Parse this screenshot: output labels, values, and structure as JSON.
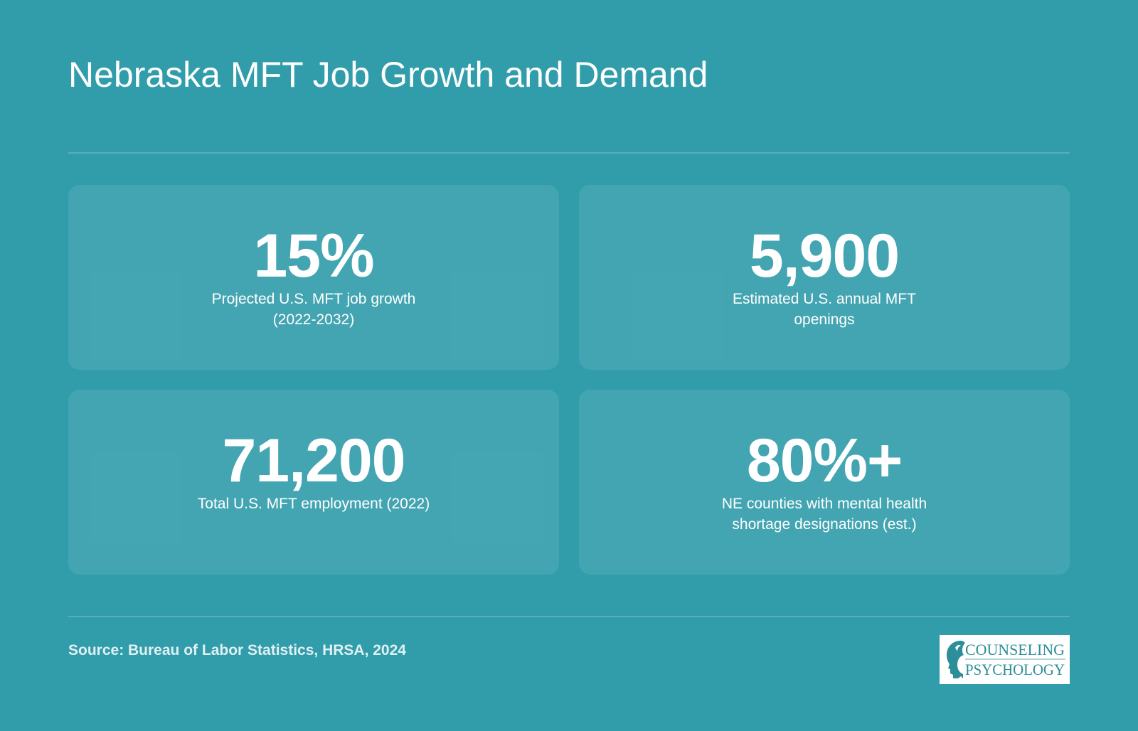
{
  "title": "Nebraska MFT Job Growth and Demand",
  "stats": [
    {
      "value": "15%",
      "label": "Projected U.S. MFT job growth (2022-2032)"
    },
    {
      "value": "5,900",
      "label": "Estimated U.S. annual MFT openings"
    },
    {
      "value": "71,200",
      "label": "Total U.S. MFT employment (2022)"
    },
    {
      "value": "80%+",
      "label": "NE counties with mental health shortage designations (est.)"
    }
  ],
  "source": "Source: Bureau of Labor Statistics, HRSA, 2024",
  "logo": {
    "line1": "COUNSELING",
    "line2": "PSYCHOLOGY",
    "icon": "head-profile-icon",
    "color": "#2b8e99"
  },
  "colors": {
    "background": "#319dab",
    "text": "#ffffff"
  }
}
